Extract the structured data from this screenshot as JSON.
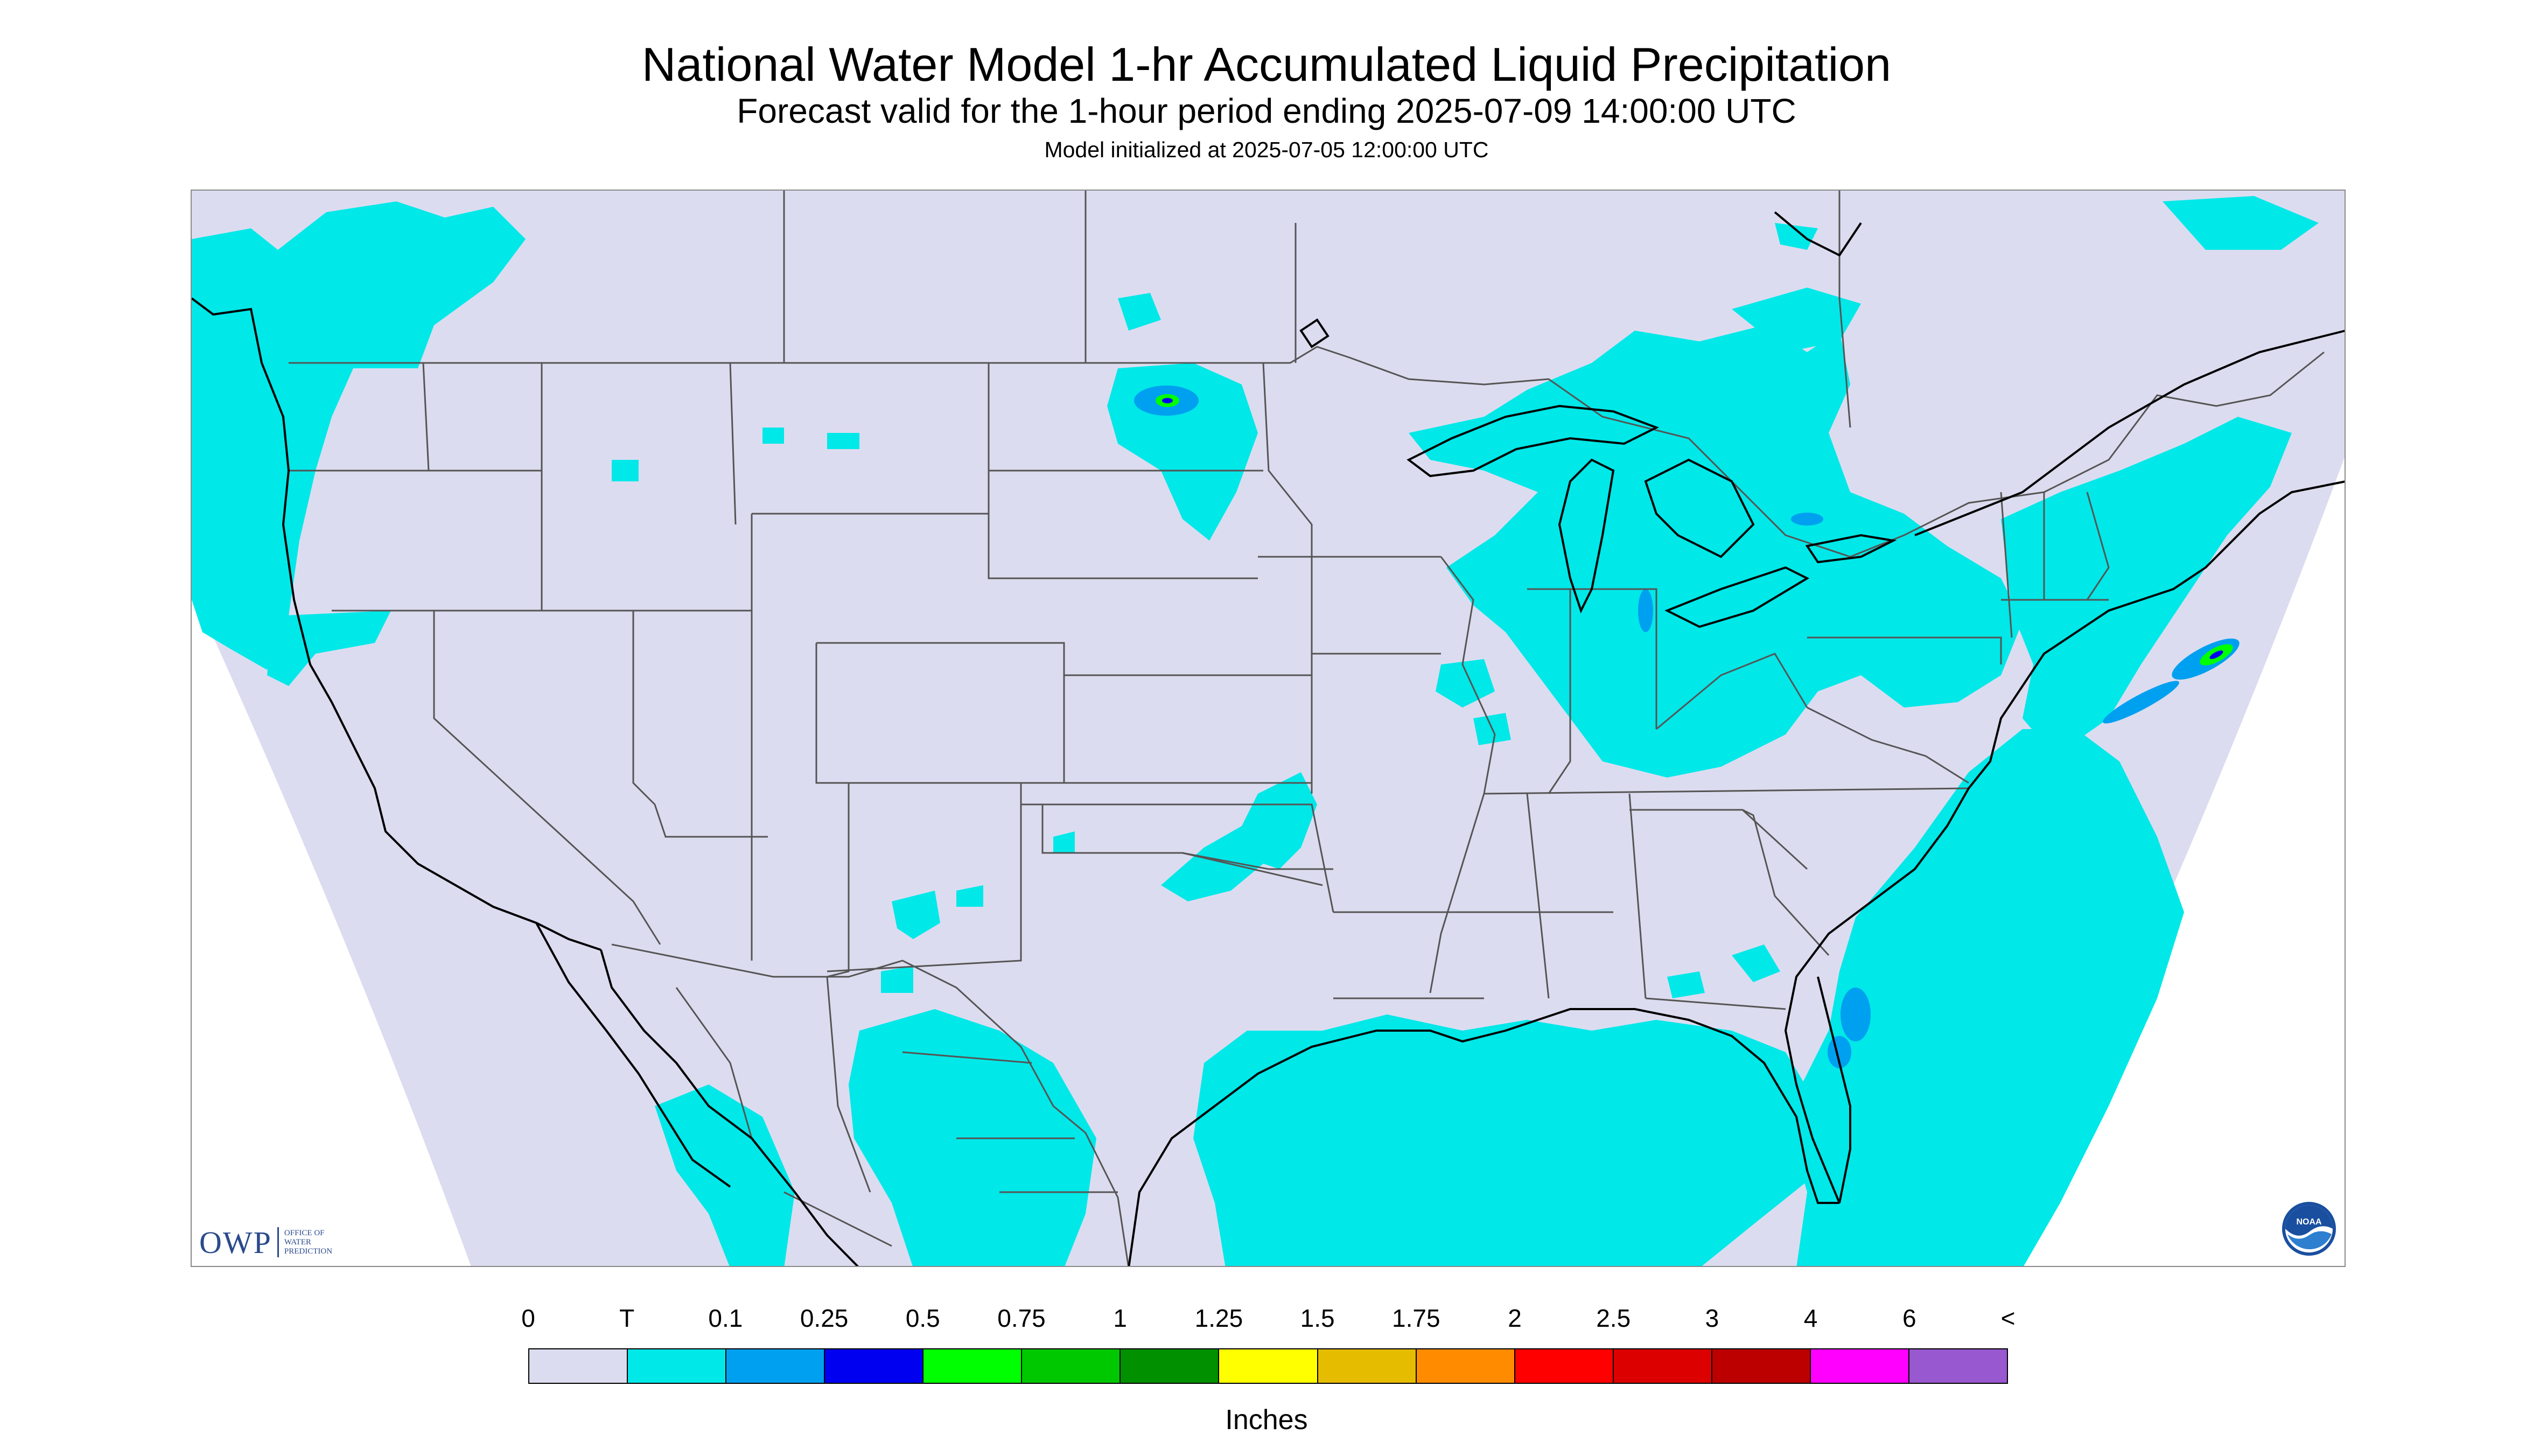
{
  "title": "National Water Model 1-hr Accumulated Liquid Precipitation",
  "subtitle": "Forecast valid for the 1-hour period ending 2025-07-09 14:00:00 UTC",
  "init_line": "Model initialized at 2025-07-05 12:00:00 UTC",
  "logos": {
    "owp": {
      "mark": "OWP",
      "line1": "OFFICE OF",
      "line2": "WATER",
      "line3": "PREDICTION"
    },
    "noaa": {
      "text": "NOAA"
    }
  },
  "legend": {
    "labels": [
      "0",
      "T",
      "0.1",
      "0.25",
      "0.5",
      "0.75",
      "1",
      "1.25",
      "1.5",
      "1.75",
      "2",
      "2.5",
      "3",
      "4",
      "6",
      "<"
    ],
    "colors": [
      "#dcdcf0",
      "#00e8e8",
      "#00a0f0",
      "#0000f0",
      "#00ff00",
      "#00c800",
      "#009000",
      "#ffff00",
      "#e6bc00",
      "#ff8c00",
      "#ff0000",
      "#dc0000",
      "#bc0000",
      "#ff00ff",
      "#9858d0"
    ],
    "units": "Inches"
  },
  "map": {
    "background_color": "#dcdcf0",
    "trace_color": "#00e8e8",
    "light_color": "#00a0f0",
    "moderate_color": "#00ff00"
  }
}
